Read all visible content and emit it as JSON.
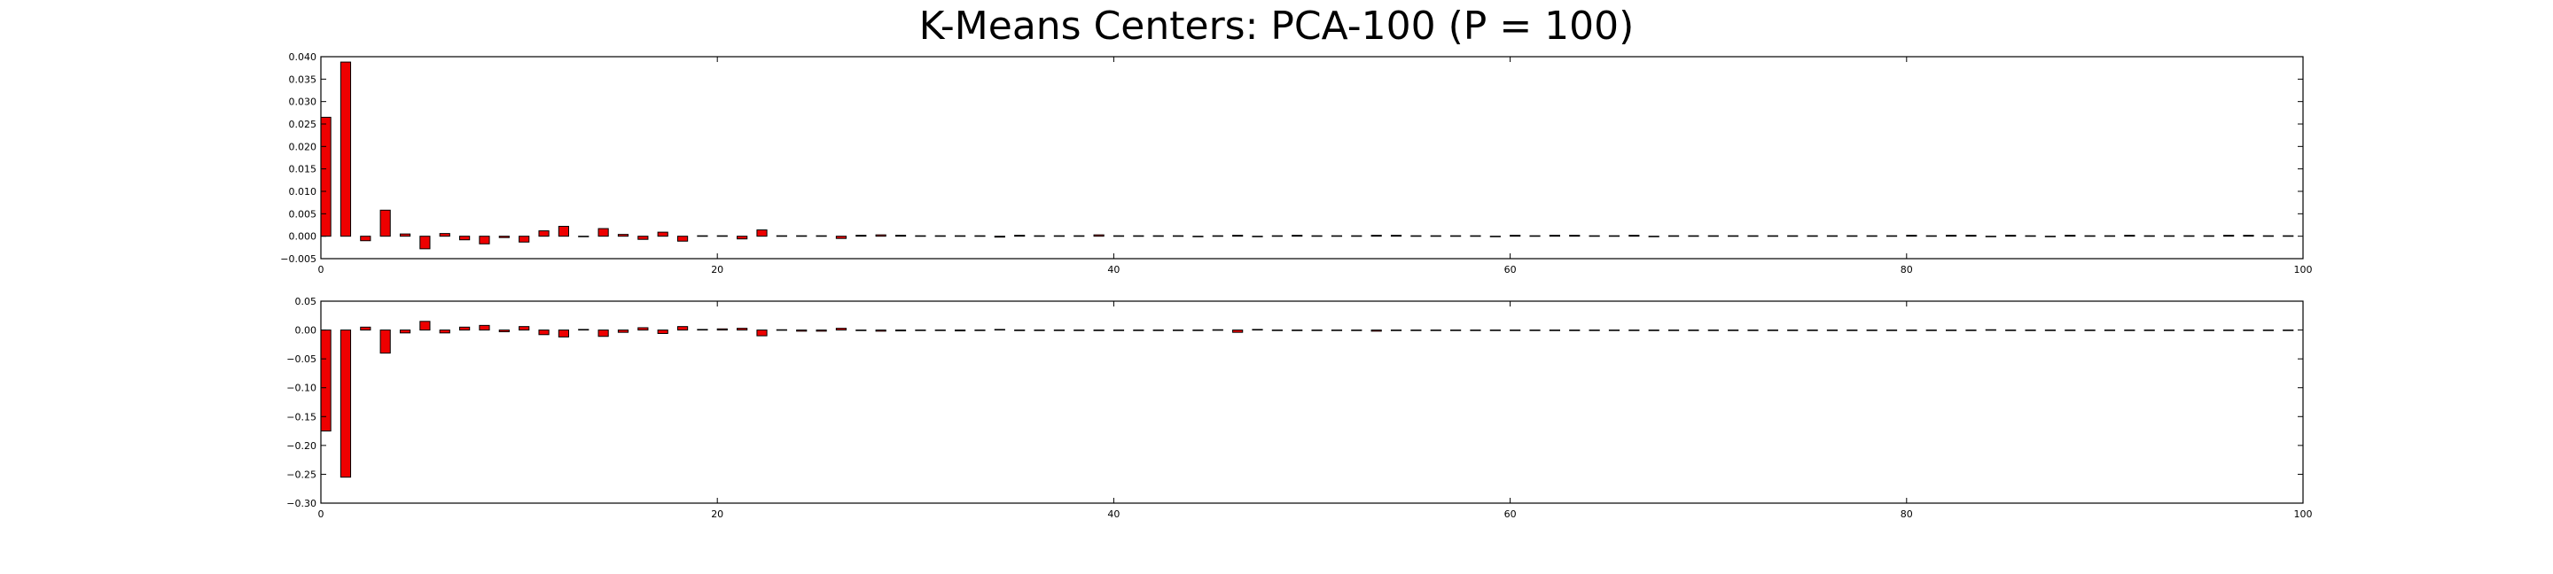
{
  "title": "K-Means Centers: PCA-100 (P = 100)",
  "chart_data": [
    {
      "type": "bar",
      "color": "#ee0000",
      "edgecolor": "#000000",
      "xlim": [
        0,
        100
      ],
      "ylim": [
        -0.005,
        0.04
      ],
      "xticks": [
        "0",
        "20",
        "40",
        "60",
        "80",
        "100"
      ],
      "yticks": [
        "0.040",
        "0.035",
        "0.030",
        "0.025",
        "0.020",
        "0.015",
        "0.010",
        "0.005",
        "0.000",
        "−0.005"
      ],
      "x": [
        0,
        1,
        2,
        3,
        4,
        5,
        6,
        7,
        8,
        9,
        10,
        11,
        12,
        13,
        14,
        15,
        16,
        17,
        18,
        19,
        20,
        21,
        22,
        23,
        24,
        25,
        26,
        27,
        28,
        29,
        30,
        31,
        32,
        33,
        34,
        35,
        36,
        37,
        38,
        39,
        40,
        41,
        42,
        43,
        44,
        45,
        46,
        47,
        48,
        49,
        50,
        51,
        52,
        53,
        54,
        55,
        56,
        57,
        58,
        59,
        60,
        61,
        62,
        63,
        64,
        65,
        66,
        67,
        68,
        69,
        70,
        71,
        72,
        73,
        74,
        75,
        76,
        77,
        78,
        79,
        80,
        81,
        82,
        83,
        84,
        85,
        86,
        87,
        88,
        89,
        90,
        91,
        92,
        93,
        94,
        95,
        96,
        97,
        98,
        99
      ],
      "values": [
        0.0265,
        0.0388,
        -0.001,
        0.0058,
        0.0005,
        -0.0028,
        0.0006,
        -0.0008,
        -0.0017,
        -0.0003,
        -0.0013,
        0.0012,
        0.0022,
        -0.0001,
        0.0017,
        0.0004,
        -0.0007,
        0.0009,
        -0.0011,
        0.0001,
        0.0001,
        -0.0006,
        0.0014,
        0.0001,
        0.0001,
        0.0001,
        -0.0005,
        0.0002,
        0.0003,
        0.0002,
        0.0001,
        0.0001,
        0.0001,
        0.0001,
        -0.0002,
        0.0002,
        0.0001,
        0.0001,
        0.0001,
        0.0003,
        0.0001,
        0.0001,
        0.0001,
        0.0001,
        -0.0001,
        0.0001,
        0.0002,
        -0.0001,
        0.0001,
        0.0002,
        0.0001,
        0.0001,
        0.0001,
        0.0002,
        0.0002,
        0.0001,
        0.0001,
        0.0001,
        0.0001,
        -0.0001,
        0.0002,
        0.0001,
        0.0002,
        0.0002,
        0.0001,
        0.0001,
        0.0002,
        -0.0001,
        0.0001,
        0.0001,
        0.0001,
        0.0001,
        0.0001,
        0.0001,
        0.0001,
        0.0001,
        0.0001,
        0.0001,
        0.0001,
        0.0001,
        0.0002,
        0.0001,
        0.0002,
        0.0002,
        -0.0001,
        0.0002,
        0.0001,
        -0.0001,
        0.0002,
        0.0001,
        0.0001,
        0.0002,
        0.0001,
        0.0001,
        0.0001,
        0.0001,
        0.0002,
        0.0002,
        0.0001,
        0.0001
      ]
    },
    {
      "type": "bar",
      "color": "#ee0000",
      "edgecolor": "#000000",
      "xlim": [
        0,
        100
      ],
      "ylim": [
        -0.3,
        0.05
      ],
      "xticks": [
        "0",
        "20",
        "40",
        "60",
        "80",
        "100"
      ],
      "yticks": [
        "0.05",
        "0.00",
        "−0.05",
        "−0.10",
        "−0.15",
        "−0.20",
        "−0.25",
        "−0.30"
      ],
      "x": [
        0,
        1,
        2,
        3,
        4,
        5,
        6,
        7,
        8,
        9,
        10,
        11,
        12,
        13,
        14,
        15,
        16,
        17,
        18,
        19,
        20,
        21,
        22,
        23,
        24,
        25,
        26,
        27,
        28,
        29,
        30,
        31,
        32,
        33,
        34,
        35,
        36,
        37,
        38,
        39,
        40,
        41,
        42,
        43,
        44,
        45,
        46,
        47,
        48,
        49,
        50,
        51,
        52,
        53,
        54,
        55,
        56,
        57,
        58,
        59,
        60,
        61,
        62,
        63,
        64,
        65,
        66,
        67,
        68,
        69,
        70,
        71,
        72,
        73,
        74,
        75,
        76,
        77,
        78,
        79,
        80,
        81,
        82,
        83,
        84,
        85,
        86,
        87,
        88,
        89,
        90,
        91,
        92,
        93,
        94,
        95,
        96,
        97,
        98,
        99
      ],
      "values": [
        -0.175,
        -0.255,
        0.005,
        -0.04,
        -0.005,
        0.015,
        -0.005,
        0.005,
        0.008,
        -0.003,
        0.006,
        -0.008,
        -0.012,
        0.001,
        -0.011,
        -0.004,
        0.004,
        -0.006,
        0.006,
        0.001,
        0.002,
        0.003,
        -0.01,
        0.0005,
        -0.002,
        -0.002,
        0.003,
        -0.001,
        -0.002,
        -0.0015,
        -0.0005,
        -0.0005,
        -0.0015,
        0.0,
        0.001,
        -0.001,
        -0.0005,
        0.0,
        0.0,
        -0.001,
        0.0,
        0.0,
        -0.0005,
        -0.0005,
        0.0,
        0.0005,
        -0.004,
        0.001,
        0.0,
        -0.001,
        0.0,
        -0.0005,
        0.0,
        -0.002,
        -0.001,
        0.0,
        0.0,
        0.0,
        0.0,
        0.0,
        -0.0005,
        0.0,
        -0.001,
        -0.001,
        0.0,
        -0.0005,
        -0.0005,
        -0.001,
        0.0,
        0.0,
        0.0,
        0.0,
        0.0,
        0.0,
        0.0,
        0.0,
        0.0,
        -0.0005,
        0.0,
        0.0,
        -0.0005,
        0.0,
        -0.0005,
        -0.0005,
        0.0005,
        -0.0005,
        0.0,
        0.0,
        -0.0005,
        0.0,
        0.0,
        -0.0005,
        0.0,
        0.0,
        0.0,
        0.0,
        -0.0005,
        -0.0005,
        0.0,
        0.0
      ]
    }
  ]
}
